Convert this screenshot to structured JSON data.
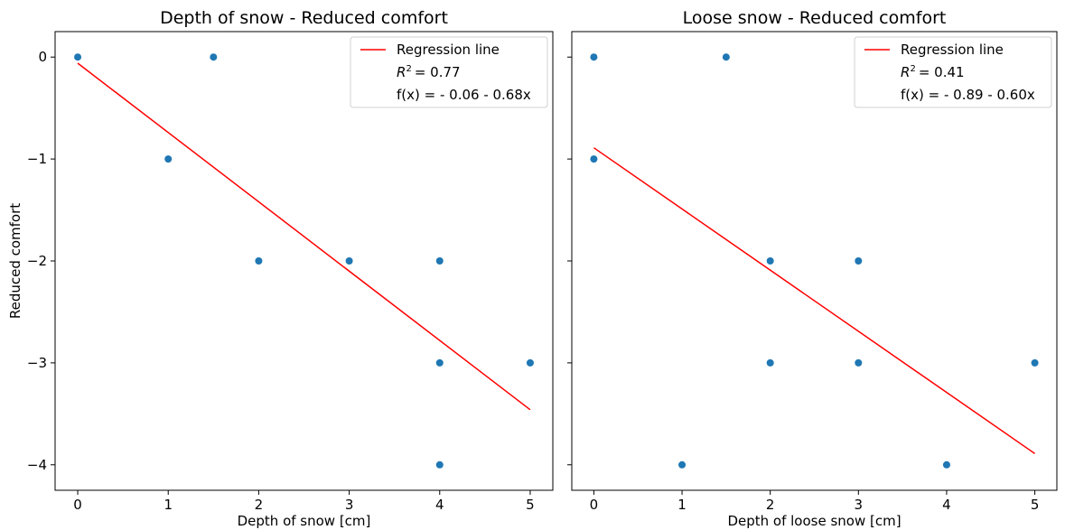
{
  "chart_data": [
    {
      "type": "scatter",
      "title": "Depth of snow - Reduced comfort",
      "xlabel": "Depth of snow [cm]",
      "ylabel": "Reduced comfort",
      "xlim": [
        -0.25,
        5.25
      ],
      "ylim": [
        -4.25,
        0.25
      ],
      "xticks": [
        0,
        1,
        2,
        3,
        4,
        5
      ],
      "yticks": [
        0,
        -1,
        -2,
        -3,
        -4
      ],
      "ytick_labels": [
        "0",
        "−1",
        "−2",
        "−3",
        "−4"
      ],
      "points": [
        {
          "x": 0,
          "y": 0
        },
        {
          "x": 1.5,
          "y": 0
        },
        {
          "x": 1,
          "y": -1
        },
        {
          "x": 2,
          "y": -2
        },
        {
          "x": 3,
          "y": -2
        },
        {
          "x": 4,
          "y": -2
        },
        {
          "x": 4,
          "y": -3
        },
        {
          "x": 5,
          "y": -3
        },
        {
          "x": 4,
          "y": -4
        }
      ],
      "regression": {
        "intercept": -0.06,
        "slope": -0.68,
        "x_range": [
          0,
          5
        ]
      },
      "legend": {
        "placement": "top-right",
        "line_label": "Regression line",
        "r2_label": "= 0.77",
        "formula": "f(x) = - 0.06 - 0.68x"
      },
      "grid": false
    },
    {
      "type": "scatter",
      "title": "Loose snow - Reduced comfort",
      "xlabel": "Depth of loose snow [cm]",
      "ylabel": "",
      "xlim": [
        -0.25,
        5.25
      ],
      "ylim": [
        -4.25,
        0.25
      ],
      "xticks": [
        0,
        1,
        2,
        3,
        4,
        5
      ],
      "yticks": [
        0,
        -1,
        -2,
        -3,
        -4
      ],
      "ytick_labels": [],
      "points": [
        {
          "x": 0,
          "y": 0
        },
        {
          "x": 1.5,
          "y": 0
        },
        {
          "x": 0,
          "y": -1
        },
        {
          "x": 2,
          "y": -2
        },
        {
          "x": 3,
          "y": -2
        },
        {
          "x": 2,
          "y": -3
        },
        {
          "x": 3,
          "y": -3
        },
        {
          "x": 5,
          "y": -3
        },
        {
          "x": 1,
          "y": -4
        },
        {
          "x": 4,
          "y": -4
        }
      ],
      "regression": {
        "intercept": -0.89,
        "slope": -0.6,
        "x_range": [
          0,
          5
        ]
      },
      "legend": {
        "placement": "top-right",
        "line_label": "Regression line",
        "r2_label": "= 0.41",
        "formula": "f(x) = - 0.89 - 0.60x"
      },
      "grid": false
    }
  ],
  "colors": {
    "points": "#1f77b4",
    "regression": "#ff0000"
  }
}
